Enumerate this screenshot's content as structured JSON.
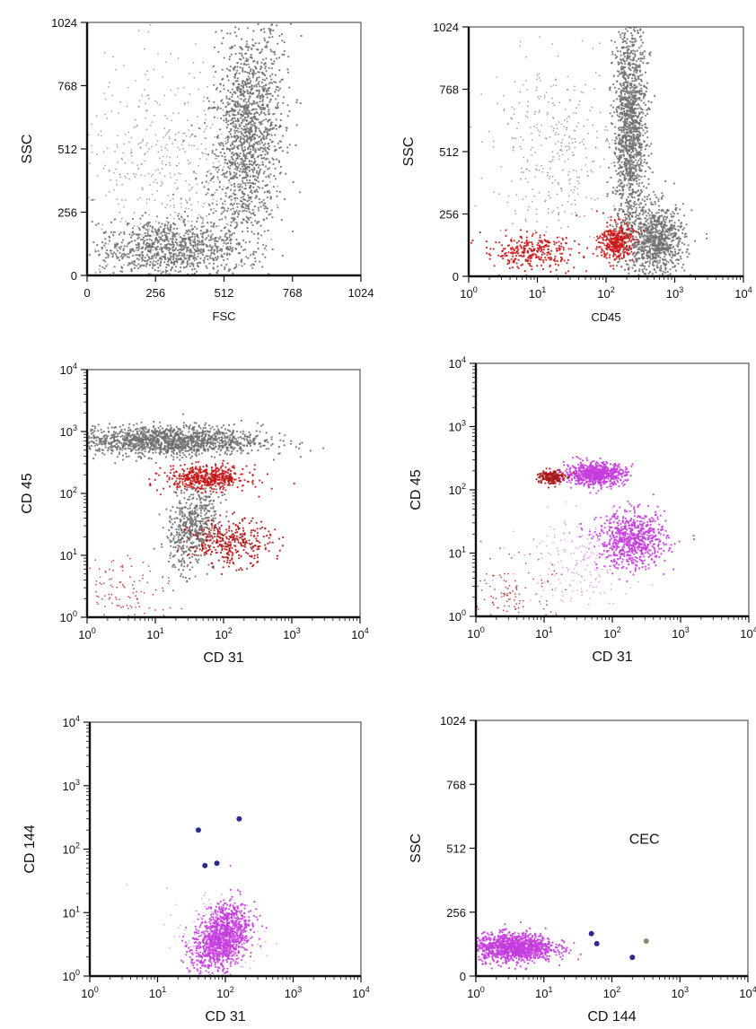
{
  "figure": {
    "description_panels": 6
  },
  "chart_data": [
    {
      "type": "scatter",
      "id": "panel-1",
      "xlabel": "FSC",
      "ylabel": "SSC",
      "xscale": "linear",
      "yscale": "linear",
      "xlim": [
        0,
        1024
      ],
      "ylim": [
        0,
        1024
      ],
      "xticks": [
        {
          "v": 0,
          "t": "0"
        },
        {
          "v": 256,
          "t": "256"
        },
        {
          "v": 512,
          "t": "512"
        },
        {
          "v": 768,
          "t": "768"
        },
        {
          "v": 1024,
          "t": "1024"
        }
      ],
      "yticks": [
        {
          "v": 0,
          "t": "0"
        },
        {
          "v": 256,
          "t": "256"
        },
        {
          "v": 512,
          "t": "512"
        },
        {
          "v": 768,
          "t": "768"
        },
        {
          "v": 1024,
          "t": "1024"
        }
      ],
      "grid": false,
      "annotations": [],
      "populations": [
        {
          "name": "gray",
          "color": "#707070",
          "density": "dense",
          "cx": 600,
          "cy": 560,
          "sx": 70,
          "sy": 220,
          "rot": 0.35,
          "n": 1500
        },
        {
          "name": "gray",
          "color": "#707070",
          "density": "dense",
          "cx": 300,
          "cy": 110,
          "sx": 130,
          "sy": 60,
          "rot": 0.15,
          "n": 900
        },
        {
          "name": "gray",
          "color": "#8a8a8a",
          "density": "sparse",
          "cx": 300,
          "cy": 420,
          "sx": 160,
          "sy": 230,
          "rot": 0,
          "n": 500
        }
      ]
    },
    {
      "type": "scatter",
      "id": "panel-2",
      "xlabel": "CD45",
      "ylabel": "SSC",
      "xscale": "log",
      "yscale": "linear",
      "xlim": [
        1,
        10000
      ],
      "ylim": [
        0,
        1024
      ],
      "xticks": [
        {
          "v": 1,
          "t": "10",
          "e": "0"
        },
        {
          "v": 10,
          "t": "10",
          "e": "1"
        },
        {
          "v": 100,
          "t": "10",
          "e": "2"
        },
        {
          "v": 1000,
          "t": "10",
          "e": "3"
        },
        {
          "v": 10000,
          "t": "10",
          "e": "4"
        }
      ],
      "yticks": [
        {
          "v": 0,
          "t": "0"
        },
        {
          "v": 256,
          "t": "256"
        },
        {
          "v": 512,
          "t": "512"
        },
        {
          "v": 768,
          "t": "768"
        },
        {
          "v": 1024,
          "t": "1024"
        }
      ],
      "grid": false,
      "annotations": [],
      "populations": [
        {
          "name": "gray",
          "color": "#707070",
          "density": "dense",
          "lcx": 2.35,
          "cy": 600,
          "lsx": 0.12,
          "sy": 230,
          "rot": 0,
          "n": 1400
        },
        {
          "name": "gray",
          "color": "#707070",
          "density": "dense",
          "lcx": 2.75,
          "cy": 150,
          "lsx": 0.2,
          "sy": 70,
          "rot": 0,
          "n": 800
        },
        {
          "name": "gray",
          "color": "#8a8a8a",
          "density": "sparse",
          "lcx": 1.25,
          "cy": 520,
          "lsx": 0.45,
          "sy": 180,
          "rot": 0,
          "n": 350
        },
        {
          "name": "red",
          "color": "#c81a1a",
          "density": "dense",
          "lcx": 2.15,
          "cy": 140,
          "lsx": 0.12,
          "sy": 40,
          "rot": 0,
          "n": 350
        },
        {
          "name": "red",
          "color": "#c81a1a",
          "density": "medium",
          "lcx": 0.9,
          "cy": 100,
          "lsx": 0.35,
          "sy": 35,
          "rot": 0,
          "n": 300
        }
      ]
    },
    {
      "type": "scatter",
      "id": "panel-3",
      "xlabel": "CD 31",
      "ylabel": "CD 45",
      "xscale": "log",
      "yscale": "log",
      "xlim": [
        1,
        10000
      ],
      "ylim": [
        1,
        10000
      ],
      "xticks": [
        {
          "v": 1,
          "t": "10",
          "e": "0"
        },
        {
          "v": 10,
          "t": "10",
          "e": "1"
        },
        {
          "v": 100,
          "t": "10",
          "e": "2"
        },
        {
          "v": 1000,
          "t": "10",
          "e": "3"
        },
        {
          "v": 10000,
          "t": "10",
          "e": "4"
        }
      ],
      "yticks": [
        {
          "v": 1,
          "t": "10",
          "e": "0"
        },
        {
          "v": 10,
          "t": "10",
          "e": "1"
        },
        {
          "v": 100,
          "t": "10",
          "e": "2"
        },
        {
          "v": 1000,
          "t": "10",
          "e": "3"
        },
        {
          "v": 10000,
          "t": "10",
          "e": "4"
        }
      ],
      "grid": false,
      "annotations": [],
      "populations": [
        {
          "name": "gray",
          "color": "#707070",
          "density": "dense",
          "lcx": 1.15,
          "lcy": 2.85,
          "lsx": 0.7,
          "lsy": 0.12,
          "rot": 0,
          "n": 1500
        },
        {
          "name": "gray",
          "color": "#707070",
          "density": "medium",
          "lcx": 1.55,
          "lcy": 1.5,
          "lsx": 0.25,
          "lsy": 0.3,
          "rot": 0.8,
          "n": 500
        },
        {
          "name": "red",
          "color": "#c81a1a",
          "density": "dense",
          "lcx": 1.75,
          "lcy": 2.25,
          "lsx": 0.3,
          "lsy": 0.1,
          "rot": 0,
          "n": 500
        },
        {
          "name": "red",
          "color": "#b01818",
          "density": "medium",
          "lcx": 2.1,
          "lcy": 1.2,
          "lsx": 0.3,
          "lsy": 0.18,
          "rot": 0,
          "n": 350
        },
        {
          "name": "red",
          "color": "#b01818",
          "density": "sparse",
          "lcx": 0.6,
          "lcy": 0.4,
          "lsx": 0.35,
          "lsy": 0.3,
          "rot": 0,
          "n": 120
        }
      ]
    },
    {
      "type": "scatter",
      "id": "panel-4",
      "xlabel": "CD 31",
      "ylabel": "CD 45",
      "xscale": "log",
      "yscale": "log",
      "xlim": [
        1,
        10000
      ],
      "ylim": [
        1,
        10000
      ],
      "xticks": [
        {
          "v": 1,
          "t": "10",
          "e": "0"
        },
        {
          "v": 10,
          "t": "10",
          "e": "1"
        },
        {
          "v": 100,
          "t": "10",
          "e": "2"
        },
        {
          "v": 1000,
          "t": "10",
          "e": "3"
        },
        {
          "v": 10000,
          "t": "10",
          "e": "4"
        }
      ],
      "yticks": [
        {
          "v": 1,
          "t": "10",
          "e": "0"
        },
        {
          "v": 10,
          "t": "10",
          "e": "1"
        },
        {
          "v": 100,
          "t": "10",
          "e": "2"
        },
        {
          "v": 1000,
          "t": "10",
          "e": "3"
        },
        {
          "v": 10000,
          "t": "10",
          "e": "4"
        }
      ],
      "grid": false,
      "annotations": [],
      "populations": [
        {
          "name": "magenta",
          "color": "#c53dde",
          "density": "dense",
          "lcx": 1.75,
          "lcy": 2.25,
          "lsx": 0.22,
          "lsy": 0.09,
          "rot": 0,
          "n": 700
        },
        {
          "name": "magenta",
          "color": "#c53dde",
          "density": "dense",
          "lcx": 2.3,
          "lcy": 1.2,
          "lsx": 0.25,
          "lsy": 0.22,
          "rot": 0,
          "n": 700
        },
        {
          "name": "magenta",
          "color": "#d98ae8",
          "density": "sparse",
          "lcx": 1.5,
          "lcy": 0.9,
          "lsx": 0.4,
          "lsy": 0.35,
          "rot": 0,
          "n": 200
        },
        {
          "name": "red",
          "color": "#a81818",
          "density": "medium",
          "lcx": 1.1,
          "lcy": 2.2,
          "lsx": 0.1,
          "lsy": 0.06,
          "rot": 0,
          "n": 180
        },
        {
          "name": "red",
          "color": "#b01818",
          "density": "sparse",
          "lcx": 0.55,
          "lcy": 0.35,
          "lsx": 0.3,
          "lsy": 0.28,
          "rot": 0,
          "n": 120
        }
      ]
    },
    {
      "type": "scatter",
      "id": "panel-5",
      "xlabel": "CD 31",
      "ylabel": "CD 144",
      "xscale": "log",
      "yscale": "log",
      "xlim": [
        1,
        10000
      ],
      "ylim": [
        1,
        10000
      ],
      "xticks": [
        {
          "v": 1,
          "t": "10",
          "e": "0"
        },
        {
          "v": 10,
          "t": "10",
          "e": "1"
        },
        {
          "v": 100,
          "t": "10",
          "e": "2"
        },
        {
          "v": 1000,
          "t": "10",
          "e": "3"
        },
        {
          "v": 10000,
          "t": "10",
          "e": "4"
        }
      ],
      "yticks": [
        {
          "v": 1,
          "t": "10",
          "e": "0"
        },
        {
          "v": 10,
          "t": "10",
          "e": "1"
        },
        {
          "v": 100,
          "t": "10",
          "e": "2"
        },
        {
          "v": 1000,
          "t": "10",
          "e": "3"
        },
        {
          "v": 10000,
          "t": "10",
          "e": "4"
        }
      ],
      "grid": false,
      "annotations": [],
      "populations": [
        {
          "name": "magenta",
          "color": "#c53dde",
          "density": "dense",
          "lcx": 1.95,
          "lcy": 0.6,
          "lsx": 0.25,
          "lsy": 0.22,
          "rot": 0.7,
          "n": 1200
        },
        {
          "name": "magenta",
          "color": "#d98ae8",
          "density": "sparse",
          "lcx": 1.9,
          "lcy": 0.6,
          "lsx": 0.4,
          "lsy": 0.4,
          "rot": 0,
          "n": 150
        }
      ],
      "points": [
        {
          "x": 40,
          "y": 200,
          "color": "#2b2b8c"
        },
        {
          "x": 50,
          "y": 55,
          "color": "#2b2b8c"
        },
        {
          "x": 75,
          "y": 60,
          "color": "#2b2b8c"
        },
        {
          "x": 160,
          "y": 300,
          "color": "#2b2b8c"
        }
      ]
    },
    {
      "type": "scatter",
      "id": "panel-6",
      "xlabel": "CD 144",
      "ylabel": "SSC",
      "xscale": "log",
      "yscale": "linear",
      "xlim": [
        1,
        10000
      ],
      "ylim": [
        0,
        1024
      ],
      "xticks": [
        {
          "v": 1,
          "t": "10",
          "e": "0"
        },
        {
          "v": 10,
          "t": "10",
          "e": "1"
        },
        {
          "v": 100,
          "t": "10",
          "e": "2"
        },
        {
          "v": 1000,
          "t": "10",
          "e": "3"
        },
        {
          "v": 10000,
          "t": "10",
          "e": "4"
        }
      ],
      "yticks": [
        {
          "v": 0,
          "t": "0"
        },
        {
          "v": 256,
          "t": "256"
        },
        {
          "v": 512,
          "t": "512"
        },
        {
          "v": 768,
          "t": "768"
        },
        {
          "v": 1024,
          "t": "1024"
        }
      ],
      "grid": false,
      "annotations": [
        {
          "text": "CEC",
          "x": 300,
          "y": 530
        }
      ],
      "populations": [
        {
          "name": "magenta",
          "color": "#c53dde",
          "density": "dense",
          "lcx": 0.55,
          "cy": 115,
          "lsx": 0.3,
          "sy": 28,
          "rot": 0,
          "n": 1200
        }
      ],
      "points": [
        {
          "x": 50,
          "y": 170,
          "color": "#2b2b8c"
        },
        {
          "x": 60,
          "y": 130,
          "color": "#2b2b8c"
        },
        {
          "x": 200,
          "y": 75,
          "color": "#2b2b8c"
        },
        {
          "x": 320,
          "y": 140,
          "color": "#8a8a6a"
        }
      ]
    }
  ]
}
